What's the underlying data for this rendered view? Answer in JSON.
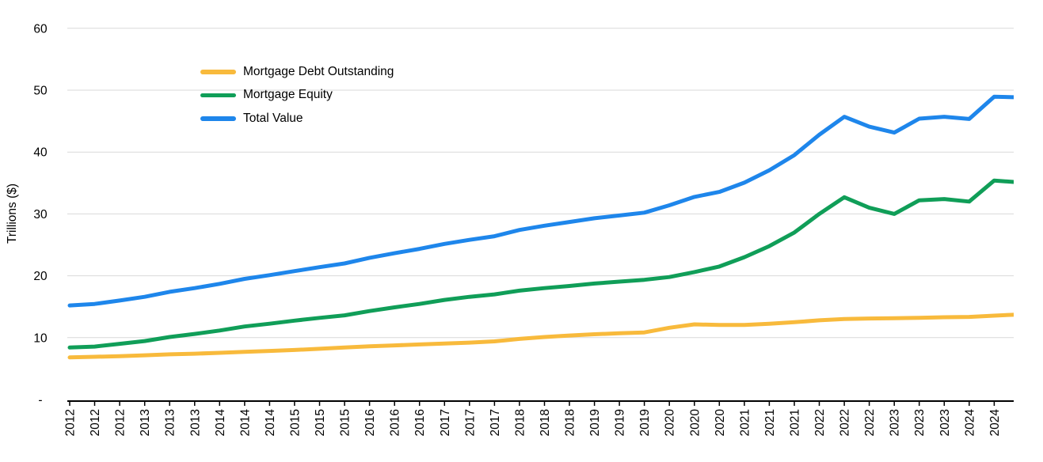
{
  "chart_data": {
    "type": "line",
    "title": "",
    "ylabel": "Trillions ($)",
    "ylim": [
      0,
      60
    ],
    "grid": true,
    "legend_position": "top-left-inset",
    "y_ticks": [
      {
        "v": 60,
        "label": "60"
      },
      {
        "v": 50,
        "label": "50"
      },
      {
        "v": 40,
        "label": "40"
      },
      {
        "v": 30,
        "label": "30"
      },
      {
        "v": 20,
        "label": "20"
      },
      {
        "v": 10,
        "label": "10"
      },
      {
        "v": 0,
        "label": "-"
      }
    ],
    "x_labels": [
      "2012",
      "2012",
      "2012",
      "2013",
      "2013",
      "2013",
      "2014",
      "2014",
      "2014",
      "2015",
      "2015",
      "2015",
      "2016",
      "2016",
      "2016",
      "2017",
      "2017",
      "2017",
      "2018",
      "2018",
      "2018",
      "2019",
      "2019",
      "2019",
      "2020",
      "2020",
      "2020",
      "2021",
      "2021",
      "2021",
      "2022",
      "2022",
      "2022",
      "2023",
      "2023",
      "2023",
      "2024",
      "2024",
      ""
    ],
    "series": [
      {
        "name": "Mortgage Debt Outstanding",
        "color": "#F8BA3C",
        "values": [
          6.8,
          6.9,
          7.0,
          7.15,
          7.3,
          7.4,
          7.55,
          7.7,
          7.85,
          8.0,
          8.2,
          8.4,
          8.6,
          8.75,
          8.9,
          9.05,
          9.2,
          9.4,
          9.8,
          10.1,
          10.35,
          10.55,
          10.7,
          10.85,
          11.6,
          12.15,
          12.05,
          12.05,
          12.25,
          12.5,
          12.8,
          13.0,
          13.1,
          13.15,
          13.2,
          13.3,
          13.35,
          13.55,
          13.75
        ]
      },
      {
        "name": "Mortgage Equity",
        "color": "#109E58",
        "values": [
          8.4,
          8.55,
          9.0,
          9.45,
          10.1,
          10.6,
          11.15,
          11.8,
          12.25,
          12.75,
          13.2,
          13.6,
          14.3,
          14.9,
          15.45,
          16.1,
          16.6,
          17.0,
          17.6,
          18.0,
          18.35,
          18.75,
          19.05,
          19.35,
          19.8,
          20.6,
          21.5,
          23.0,
          24.8,
          27.0,
          30.0,
          32.7,
          31.0,
          30.0,
          32.2,
          32.4,
          32.0,
          35.4,
          35.1
        ]
      },
      {
        "name": "Total Value",
        "color": "#1E86EB",
        "values": [
          15.2,
          15.45,
          16.0,
          16.6,
          17.4,
          18.0,
          18.7,
          19.5,
          20.1,
          20.75,
          21.4,
          22.0,
          22.9,
          23.65,
          24.35,
          25.15,
          25.8,
          26.4,
          27.4,
          28.1,
          28.7,
          29.3,
          29.75,
          30.2,
          31.4,
          32.75,
          33.55,
          35.05,
          37.05,
          39.5,
          42.8,
          45.7,
          44.1,
          43.15,
          45.4,
          45.7,
          45.35,
          48.95,
          48.85
        ]
      }
    ],
    "styles": {
      "grid_color": "#d9d9d9",
      "axis_color": "#000000",
      "text_color": "#000000",
      "background": "#ffffff"
    }
  }
}
